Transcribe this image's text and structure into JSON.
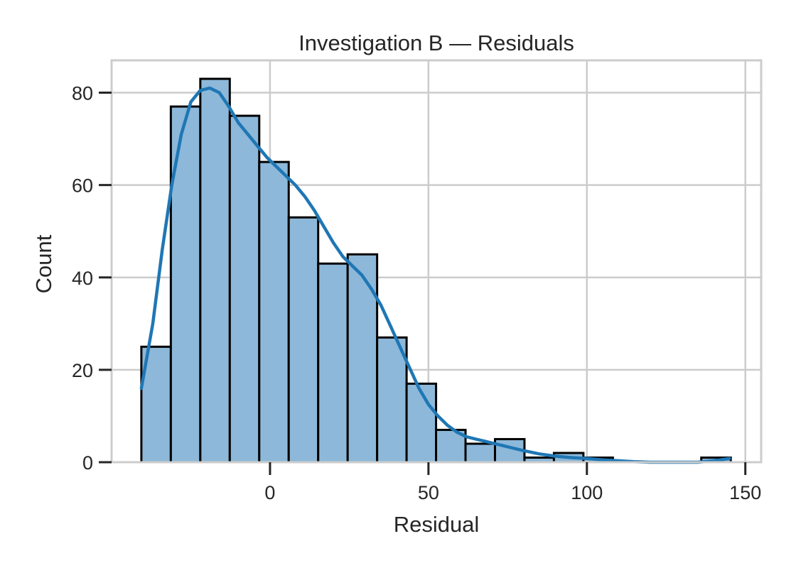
{
  "chart_data": {
    "type": "bar",
    "title": "Investigation B — Residuals",
    "xlabel": "Residual",
    "ylabel": "Count",
    "xlim": [
      -50,
      155
    ],
    "ylim": [
      0,
      87
    ],
    "xticks": [
      0,
      50,
      100,
      150
    ],
    "yticks": [
      0,
      20,
      40,
      60,
      80
    ],
    "grid": true,
    "bins": [
      {
        "x0": -40.6,
        "x1": -31.3,
        "count": 25
      },
      {
        "x0": -31.3,
        "x1": -22.0,
        "count": 77
      },
      {
        "x0": -22.0,
        "x1": -12.7,
        "count": 83
      },
      {
        "x0": -12.7,
        "x1": -3.4,
        "count": 75
      },
      {
        "x0": -3.4,
        "x1": 5.9,
        "count": 65
      },
      {
        "x0": 5.9,
        "x1": 15.2,
        "count": 53
      },
      {
        "x0": 15.2,
        "x1": 24.5,
        "count": 43
      },
      {
        "x0": 24.5,
        "x1": 33.8,
        "count": 45
      },
      {
        "x0": 33.8,
        "x1": 43.1,
        "count": 27
      },
      {
        "x0": 43.1,
        "x1": 52.4,
        "count": 17
      },
      {
        "x0": 52.4,
        "x1": 61.7,
        "count": 7
      },
      {
        "x0": 61.7,
        "x1": 71.0,
        "count": 4
      },
      {
        "x0": 71.0,
        "x1": 80.3,
        "count": 5
      },
      {
        "x0": 80.3,
        "x1": 89.6,
        "count": 1
      },
      {
        "x0": 89.6,
        "x1": 98.9,
        "count": 2
      },
      {
        "x0": 98.9,
        "x1": 108.2,
        "count": 1
      },
      {
        "x0": 108.2,
        "x1": 117.5,
        "count": 0
      },
      {
        "x0": 117.5,
        "x1": 126.8,
        "count": 0
      },
      {
        "x0": 126.8,
        "x1": 136.1,
        "count": 0
      },
      {
        "x0": 136.1,
        "x1": 145.4,
        "count": 1
      }
    ],
    "kde": {
      "x": [
        -40.6,
        -37,
        -34,
        -31,
        -28,
        -25,
        -22,
        -19,
        -16,
        -13,
        -10,
        -7,
        -4,
        -1,
        2,
        5,
        8,
        11,
        14,
        17,
        20,
        23,
        26,
        29,
        32,
        35,
        38,
        41,
        44,
        47,
        50,
        53,
        56,
        59,
        62,
        65,
        68,
        71,
        74,
        77,
        80,
        85,
        90,
        95,
        100,
        105,
        110,
        115,
        120,
        125,
        130,
        135,
        140,
        145
      ],
      "y": [
        16,
        30,
        46,
        60,
        71,
        78,
        80.5,
        81,
        80,
        77,
        73.5,
        71,
        68.5,
        66,
        64,
        62,
        60,
        57.5,
        54.5,
        51,
        47.5,
        44.5,
        42.5,
        40.5,
        37.5,
        34,
        29.5,
        25,
        20.5,
        16,
        12.5,
        10,
        8,
        6.5,
        5.5,
        5,
        4.5,
        4,
        3.5,
        3,
        2.5,
        1.8,
        1.3,
        1.0,
        0.8,
        0.5,
        0.3,
        0.1,
        0,
        0,
        0,
        0,
        0.3,
        0.8
      ]
    },
    "colors": {
      "bar_fill": "#8db8d9",
      "bar_edge": "#000000",
      "kde_line": "#1f77b4",
      "grid": "#cccccc",
      "spine": "#cccccc",
      "text": "#262626"
    }
  }
}
